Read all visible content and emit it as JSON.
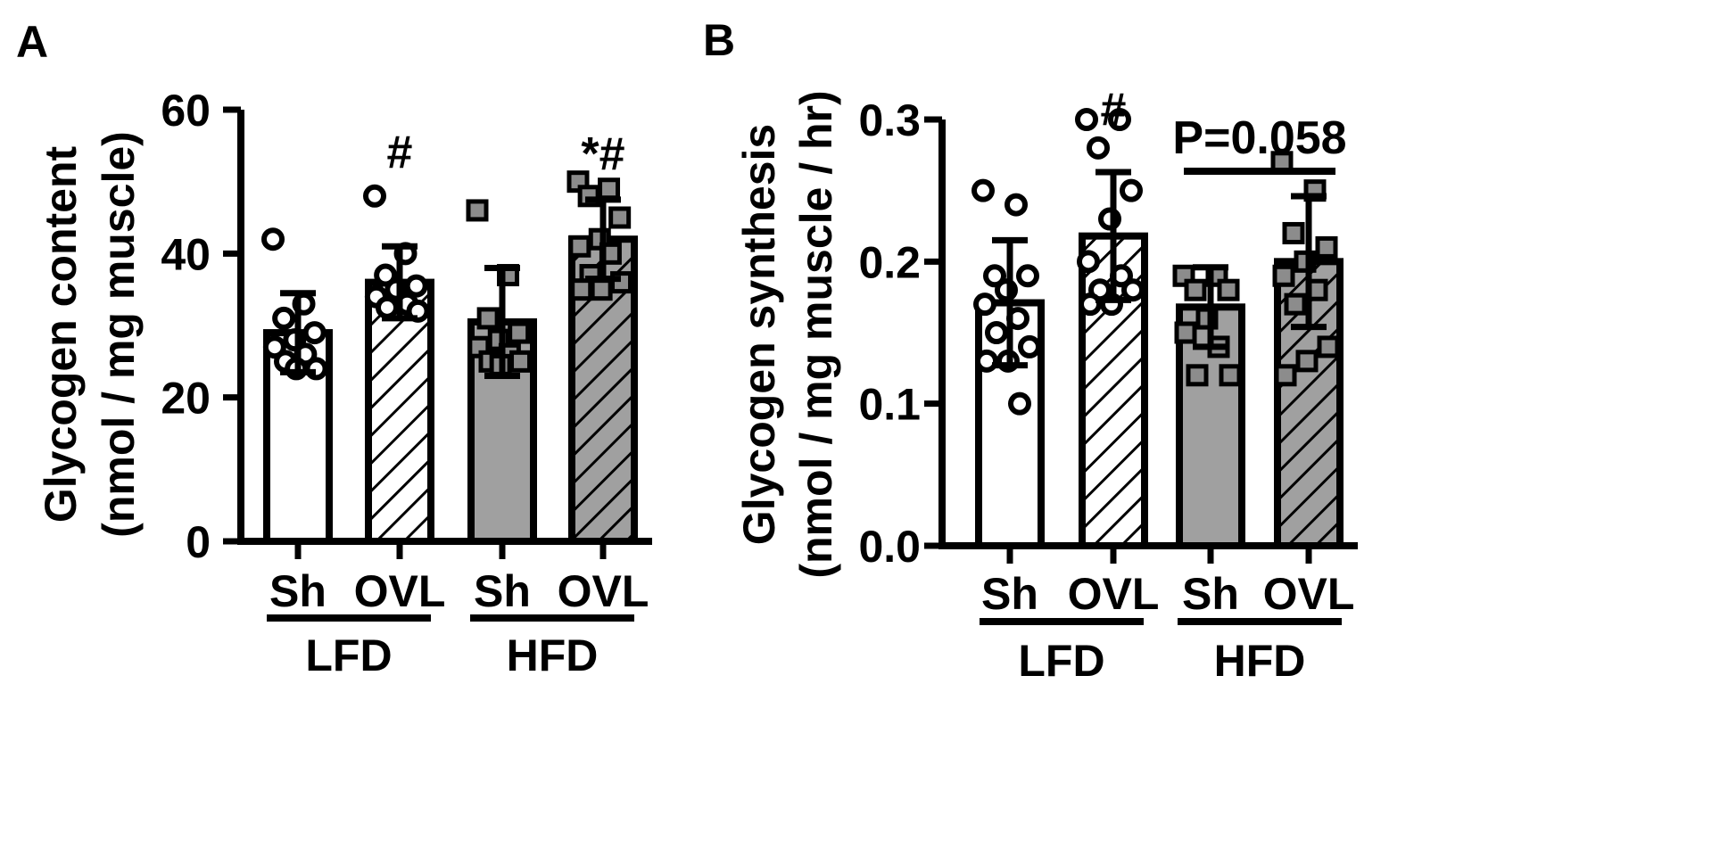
{
  "chart_data": [
    {
      "panel": "A",
      "type": "bar",
      "ylabel_line1": "Glycogen content",
      "ylabel_line2": "(nmol / mg muscle)",
      "ylim": [
        0,
        60
      ],
      "yticks": [
        "0",
        "20",
        "40",
        "60"
      ],
      "ytick_values": [
        0,
        20,
        40,
        60
      ],
      "bars": [
        {
          "label": "Sh",
          "group": "LFD",
          "fill": "white",
          "mean": 29.0,
          "sd": 5.5,
          "points": [
            42,
            33,
            31,
            29,
            28,
            27,
            26,
            25,
            24,
            24
          ],
          "marker": "circle"
        },
        {
          "label": "OVL",
          "group": "LFD",
          "fill": "hatch-white",
          "mean": 36.0,
          "sd": 5.0,
          "points": [
            48,
            40,
            37,
            35.5,
            35,
            34,
            33,
            32.5,
            32
          ],
          "marker": "circle",
          "annotation": "#"
        },
        {
          "label": "Sh",
          "group": "HFD",
          "fill": "gray",
          "mean": 30.5,
          "sd": 7.5,
          "points": [
            46,
            37,
            31,
            29,
            28,
            27,
            26,
            25,
            25,
            24.5
          ],
          "marker": "square"
        },
        {
          "label": "OVL",
          "group": "HFD",
          "fill": "hatch-gray",
          "mean": 42.0,
          "sd": 5.5,
          "points": [
            50,
            49,
            48,
            45,
            42,
            41,
            40,
            37,
            36,
            35,
            35
          ],
          "marker": "square",
          "annotation": "*#"
        }
      ],
      "groups": [
        "LFD",
        "HFD"
      ]
    },
    {
      "panel": "B",
      "type": "bar",
      "ylabel_line1": "Glycogen synthesis",
      "ylabel_line2": "(nmol / mg muscle / hr)",
      "ylim": [
        0,
        0.3
      ],
      "yticks": [
        "0.0",
        "0.1",
        "0.2",
        "0.3"
      ],
      "ytick_values": [
        0,
        0.1,
        0.2,
        0.3
      ],
      "bars": [
        {
          "label": "Sh",
          "group": "LFD",
          "fill": "white",
          "mean": 0.171,
          "sd": 0.044,
          "points": [
            0.25,
            0.24,
            0.19,
            0.19,
            0.18,
            0.17,
            0.16,
            0.15,
            0.14,
            0.13,
            0.13,
            0.1
          ],
          "marker": "circle"
        },
        {
          "label": "OVL",
          "group": "LFD",
          "fill": "hatch-white",
          "mean": 0.218,
          "sd": 0.045,
          "points": [
            0.3,
            0.3,
            0.28,
            0.25,
            0.23,
            0.2,
            0.19,
            0.18,
            0.18,
            0.17,
            0.17
          ],
          "marker": "circle",
          "annotation": "#"
        },
        {
          "label": "Sh",
          "group": "HFD",
          "fill": "gray",
          "mean": 0.168,
          "sd": 0.028,
          "points": [
            0.19,
            0.19,
            0.18,
            0.18,
            0.16,
            0.15,
            0.14,
            0.12,
            0.12
          ],
          "marker": "square"
        },
        {
          "label": "OVL",
          "group": "HFD",
          "fill": "hatch-gray",
          "mean": 0.2,
          "sd": 0.046,
          "points": [
            0.27,
            0.25,
            0.22,
            0.21,
            0.2,
            0.19,
            0.18,
            0.17,
            0.14,
            0.13,
            0.12
          ],
          "marker": "square"
        }
      ],
      "groups": [
        "LFD",
        "HFD"
      ],
      "comparison": {
        "between": [
          2,
          3
        ],
        "label": "P=0.058"
      }
    }
  ],
  "colors": {
    "gray": "#a0a0a0",
    "point_gray": "#8c8c8c",
    "line": "#000000",
    "white": "#ffffff"
  }
}
